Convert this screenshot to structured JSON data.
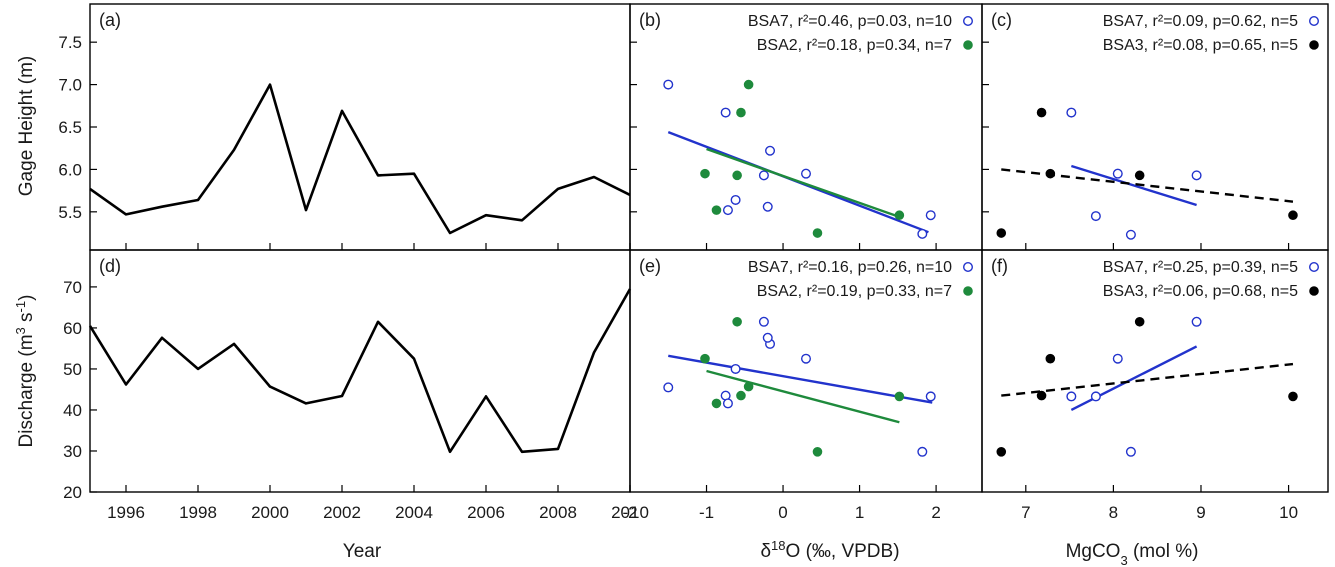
{
  "chart_data": [
    {
      "id": "a",
      "type": "line",
      "panel_label": "(a)",
      "xlim": [
        1995,
        2010
      ],
      "ylim": [
        5.05,
        7.95
      ],
      "xticks": [
        1996,
        1998,
        2000,
        2002,
        2004,
        2006,
        2008,
        2010
      ],
      "yticks": [
        5.5,
        6.0,
        6.5,
        7.0,
        7.5
      ],
      "ytick_labels": [
        "5.5",
        "6.0",
        "6.5",
        "7.0",
        "7.5"
      ],
      "ylabel": "Gage Height (m)",
      "series": [
        {
          "color": "#000000",
          "x": [
            1995,
            1996,
            1997,
            1998,
            1999,
            2000,
            2001,
            2002,
            2003,
            2004,
            2005,
            2006,
            2007,
            2008,
            2009,
            2010
          ],
          "y": [
            5.77,
            5.47,
            5.56,
            5.64,
            6.23,
            7.0,
            5.52,
            6.69,
            5.93,
            5.95,
            5.25,
            5.46,
            5.4,
            5.77,
            5.91,
            5.7
          ]
        }
      ]
    },
    {
      "id": "b",
      "type": "scatter",
      "panel_label": "(b)",
      "xlim": [
        -2,
        2.6
      ],
      "ylim": [
        5.05,
        7.95
      ],
      "xticks": [
        -2,
        -1,
        0,
        1,
        2
      ],
      "yticks": [
        5.5,
        6.0,
        6.5,
        7.0,
        7.5
      ],
      "legend": [
        "BSA7, r²=0.46, p=0.03, n=10",
        "BSA2, r²=0.18, p=0.34, n=7"
      ],
      "series": [
        {
          "name": "BSA7",
          "marker": "open",
          "color": "#2233cc",
          "x": [
            -1.5,
            -0.75,
            -0.62,
            -0.25,
            -0.17,
            0.3,
            -0.72,
            1.82,
            1.93,
            -0.2
          ],
          "y": [
            7.0,
            6.67,
            5.64,
            5.93,
            6.22,
            5.95,
            5.52,
            5.24,
            5.46,
            5.56
          ],
          "fit": [
            [
              -1.5,
              6.44
            ],
            [
              1.9,
              5.26
            ]
          ]
        },
        {
          "name": "BSA2",
          "marker": "filled",
          "color": "#1e8a3c",
          "x": [
            -0.45,
            -0.55,
            -1.02,
            -0.6,
            -0.87,
            0.45,
            1.52
          ],
          "y": [
            7.0,
            6.67,
            5.95,
            5.93,
            5.52,
            5.25,
            5.46
          ],
          "fit": [
            [
              -1.0,
              6.24
            ],
            [
              1.52,
              5.44
            ]
          ]
        }
      ]
    },
    {
      "id": "c",
      "type": "scatter",
      "panel_label": "(c)",
      "xlim": [
        6.5,
        10.45
      ],
      "ylim": [
        5.05,
        7.95
      ],
      "xticks": [
        7,
        8,
        9,
        10
      ],
      "yticks": [
        5.5,
        6.0,
        6.5,
        7.0,
        7.5
      ],
      "legend": [
        "BSA7, r²=0.09, p=0.62, n=5",
        "BSA3, r²=0.08, p=0.65, n=5"
      ],
      "series": [
        {
          "name": "BSA7",
          "marker": "open",
          "color": "#2233cc",
          "x": [
            7.52,
            8.05,
            7.8,
            8.2,
            8.95
          ],
          "y": [
            6.67,
            5.95,
            5.45,
            5.23,
            5.93
          ],
          "fit": [
            [
              7.52,
              6.04
            ],
            [
              8.95,
              5.58
            ]
          ],
          "fit_style": "solid"
        },
        {
          "name": "BSA3",
          "marker": "filled",
          "color": "#000000",
          "x": [
            7.18,
            7.28,
            8.3,
            6.72,
            10.05
          ],
          "y": [
            6.67,
            5.95,
            5.93,
            5.25,
            5.46
          ],
          "fit": [
            [
              6.72,
              6.0
            ],
            [
              10.05,
              5.62
            ]
          ],
          "fit_style": "dashed"
        }
      ]
    },
    {
      "id": "d",
      "type": "line",
      "panel_label": "(d)",
      "xlim": [
        1995,
        2010
      ],
      "ylim": [
        20,
        79
      ],
      "xticks": [
        1996,
        1998,
        2000,
        2002,
        2004,
        2006,
        2008,
        2010
      ],
      "xtick_labels": [
        "1996",
        "1998",
        "2000",
        "2002",
        "2004",
        "2006",
        "2008",
        "2010"
      ],
      "yticks": [
        20,
        30,
        40,
        50,
        60,
        70
      ],
      "ytick_labels": [
        "20",
        "30",
        "40",
        "50",
        "60",
        "70"
      ],
      "xlabel": "Year",
      "ylabel": "Discharge (m³ s⁻¹)",
      "series": [
        {
          "color": "#000000",
          "x": [
            1995,
            1996,
            1997,
            1998,
            1999,
            2000,
            2001,
            2002,
            2003,
            2004,
            2005,
            2006,
            2007,
            2008,
            2009,
            2010
          ],
          "y": [
            60.5,
            46.2,
            57.6,
            50.0,
            56.1,
            45.7,
            41.6,
            43.4,
            61.5,
            52.5,
            29.8,
            43.3,
            29.8,
            30.5,
            54.0,
            69.5
          ]
        }
      ]
    },
    {
      "id": "e",
      "type": "scatter",
      "panel_label": "(e)",
      "xlim": [
        -2,
        2.6
      ],
      "ylim": [
        20,
        79
      ],
      "xticks": [
        -2,
        -1,
        0,
        1,
        2
      ],
      "xtick_labels": [
        "-2",
        "-1",
        "0",
        "1",
        "2"
      ],
      "xlabel": "δ18O (‰, VPDB)",
      "legend": [
        "BSA7, r²=0.16, p=0.26, n=10",
        "BSA2, r²=0.19, p=0.33, n=7"
      ],
      "series": [
        {
          "name": "BSA7",
          "marker": "open",
          "color": "#2233cc",
          "x": [
            -1.5,
            -0.75,
            -0.72,
            -0.62,
            -0.25,
            -0.17,
            -0.2,
            0.3,
            1.82,
            1.93
          ],
          "y": [
            45.5,
            43.5,
            41.6,
            50.0,
            61.5,
            56.1,
            57.6,
            52.5,
            29.8,
            43.3
          ],
          "fit": [
            [
              -1.5,
              53.2
            ],
            [
              1.95,
              41.8
            ]
          ]
        },
        {
          "name": "BSA2",
          "marker": "filled",
          "color": "#1e8a3c",
          "x": [
            -1.02,
            -0.87,
            -0.6,
            -0.55,
            -0.45,
            0.45,
            1.52
          ],
          "y": [
            52.5,
            41.6,
            61.5,
            43.5,
            45.7,
            29.8,
            43.3
          ],
          "fit": [
            [
              -1.0,
              49.5
            ],
            [
              1.52,
              37.0
            ]
          ]
        }
      ]
    },
    {
      "id": "f",
      "type": "scatter",
      "panel_label": "(f)",
      "xlim": [
        6.5,
        10.45
      ],
      "ylim": [
        20,
        79
      ],
      "xticks": [
        7,
        8,
        9,
        10
      ],
      "xtick_labels": [
        "7",
        "8",
        "9",
        "10"
      ],
      "xlabel": "MgCO3 (mol %)",
      "legend": [
        "BSA7, r²=0.25, p=0.39, n=5",
        "BSA3, r²=0.06, p=0.68, n=5"
      ],
      "series": [
        {
          "name": "BSA7",
          "marker": "open",
          "color": "#2233cc",
          "x": [
            7.52,
            7.8,
            8.05,
            8.2,
            8.95
          ],
          "y": [
            43.3,
            43.3,
            52.5,
            29.8,
            61.5
          ],
          "fit": [
            [
              7.52,
              40.0
            ],
            [
              8.95,
              55.5
            ]
          ],
          "fit_style": "solid"
        },
        {
          "name": "BSA3",
          "marker": "filled",
          "color": "#000000",
          "x": [
            6.72,
            7.18,
            7.28,
            8.3,
            10.05
          ],
          "y": [
            29.8,
            43.5,
            52.5,
            61.5,
            43.3
          ],
          "fit": [
            [
              6.72,
              43.5
            ],
            [
              10.05,
              51.2
            ]
          ],
          "fit_style": "dashed"
        }
      ]
    }
  ]
}
